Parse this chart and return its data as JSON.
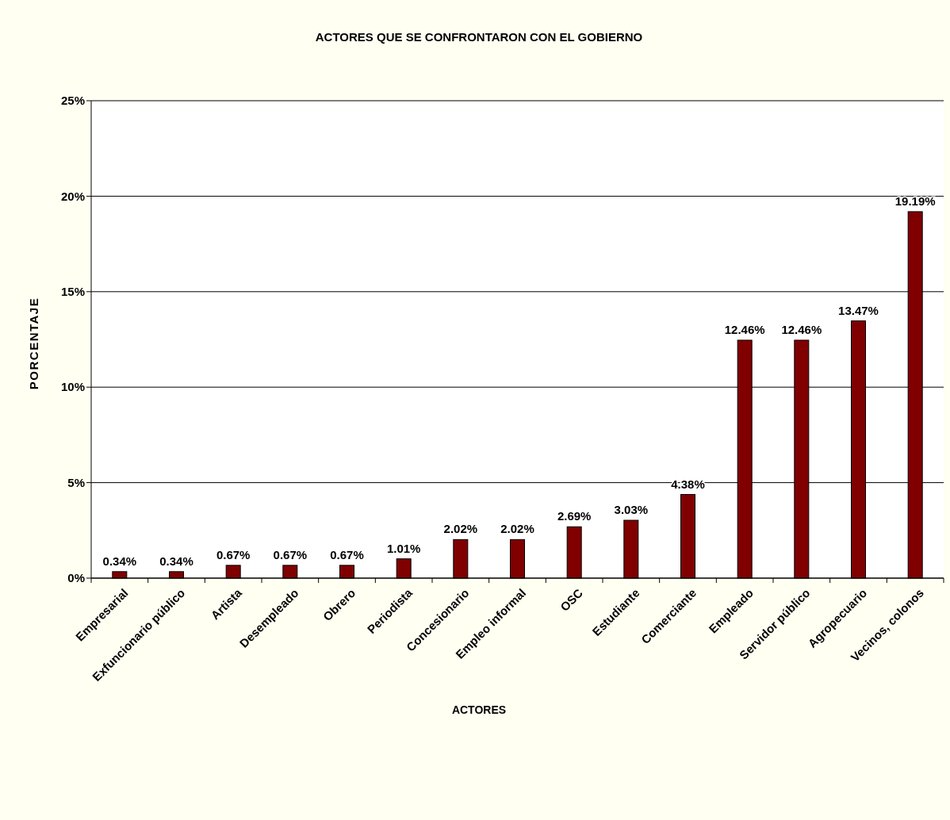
{
  "chart_data": {
    "type": "bar",
    "title": "ACTORES QUE SE CONFRONTARON CON EL GOBIERNO",
    "xlabel": "ACTORES",
    "ylabel": "PORCENTAJE",
    "categories": [
      "Empresarial",
      "Exfuncionario público",
      "Artista",
      "Desempleado",
      "Obrero",
      "Periodista",
      "Concesionario",
      "Empleo informal",
      "OSC",
      "Estudiante",
      "Comerciante",
      "Empleado",
      "Servidor público",
      "Agropecuario",
      "Vecinos, colonos"
    ],
    "values": [
      0.34,
      0.34,
      0.67,
      0.67,
      0.67,
      1.01,
      2.02,
      2.02,
      2.69,
      3.03,
      4.38,
      12.46,
      12.46,
      13.47,
      19.19
    ],
    "value_labels": [
      "0.34%",
      "0.34%",
      "0.67%",
      "0.67%",
      "0.67%",
      "1.01%",
      "2.02%",
      "2.02%",
      "2.69%",
      "3.03%",
      "4.38%",
      "12.46%",
      "12.46%",
      "13.47%",
      "19.19%"
    ],
    "color": "#800000",
    "ylim": [
      0,
      25
    ],
    "yticks": [
      {
        "value": 0,
        "label": "0%"
      },
      {
        "value": 5,
        "label": "5%"
      },
      {
        "value": 10,
        "label": "10%"
      },
      {
        "value": 15,
        "label": "15%"
      },
      {
        "value": 20,
        "label": "20%"
      },
      {
        "value": 25,
        "label": "25%"
      }
    ],
    "grid": "y"
  }
}
